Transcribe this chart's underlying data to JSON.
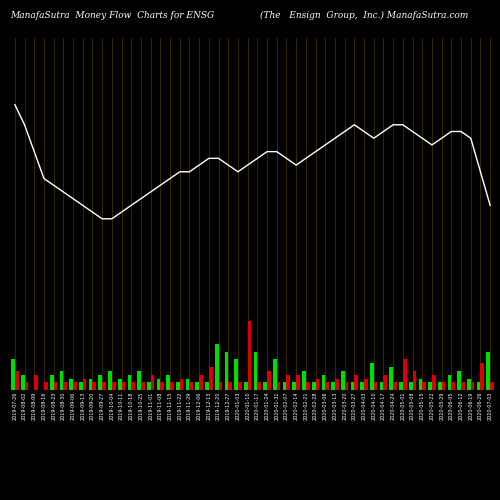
{
  "title_left": "ManafaSutra  Money Flow  Charts for ENSG",
  "title_right": "(The   Ensign  Group,  Inc.) ManafaSutra.com",
  "background_color": "#000000",
  "grid_color": "#4a3500",
  "line_color": "#ffffff",
  "n_bars": 50,
  "line_values": [
    75,
    72,
    68,
    64,
    63,
    62,
    61,
    60,
    59,
    58,
    58,
    59,
    60,
    61,
    62,
    63,
    64,
    65,
    65,
    66,
    67,
    67,
    66,
    65,
    66,
    67,
    68,
    68,
    67,
    66,
    67,
    68,
    69,
    70,
    71,
    72,
    71,
    70,
    71,
    72,
    72,
    71,
    70,
    69,
    70,
    71,
    71,
    70,
    65,
    60
  ],
  "green_values": [
    8,
    4,
    0,
    0,
    4,
    5,
    3,
    2,
    3,
    4,
    5,
    3,
    4,
    5,
    2,
    3,
    4,
    2,
    3,
    2,
    2,
    12,
    10,
    8,
    2,
    10,
    2,
    8,
    2,
    2,
    5,
    2,
    4,
    2,
    5,
    2,
    2,
    7,
    2,
    6,
    2,
    2,
    3,
    2,
    2,
    4,
    5,
    3,
    2,
    10
  ],
  "red_values": [
    5,
    2,
    4,
    2,
    2,
    2,
    2,
    3,
    2,
    2,
    2,
    2,
    2,
    2,
    4,
    2,
    2,
    3,
    2,
    4,
    6,
    2,
    2,
    2,
    18,
    2,
    5,
    2,
    4,
    4,
    2,
    3,
    2,
    3,
    2,
    4,
    3,
    2,
    4,
    2,
    8,
    5,
    2,
    4,
    2,
    2,
    2,
    2,
    7,
    2
  ],
  "x_labels": [
    "2019-07-26",
    "2019-08-02",
    "2019-08-09",
    "2019-08-16",
    "2019-08-23",
    "2019-08-30",
    "2019-09-06",
    "2019-09-13",
    "2019-09-20",
    "2019-09-27",
    "2019-10-04",
    "2019-10-11",
    "2019-10-18",
    "2019-10-25",
    "2019-11-01",
    "2019-11-08",
    "2019-11-15",
    "2019-11-22",
    "2019-11-29",
    "2019-12-06",
    "2019-12-13",
    "2019-12-20",
    "2019-12-27",
    "2020-01-03",
    "2020-01-10",
    "2020-01-17",
    "2020-01-24",
    "2020-01-31",
    "2020-02-07",
    "2020-02-14",
    "2020-02-21",
    "2020-02-28",
    "2020-03-06",
    "2020-03-13",
    "2020-03-20",
    "2020-03-27",
    "2020-04-03",
    "2020-04-10",
    "2020-04-17",
    "2020-04-24",
    "2020-05-01",
    "2020-05-08",
    "2020-05-15",
    "2020-05-22",
    "2020-05-29",
    "2020-06-05",
    "2020-06-12",
    "2020-06-19",
    "2020-06-26",
    "2020-07-03"
  ],
  "title_fontsize": 6.5,
  "label_fontsize": 3.5,
  "line_ylim": [
    45,
    85
  ],
  "bar_ylim": [
    0,
    22
  ]
}
